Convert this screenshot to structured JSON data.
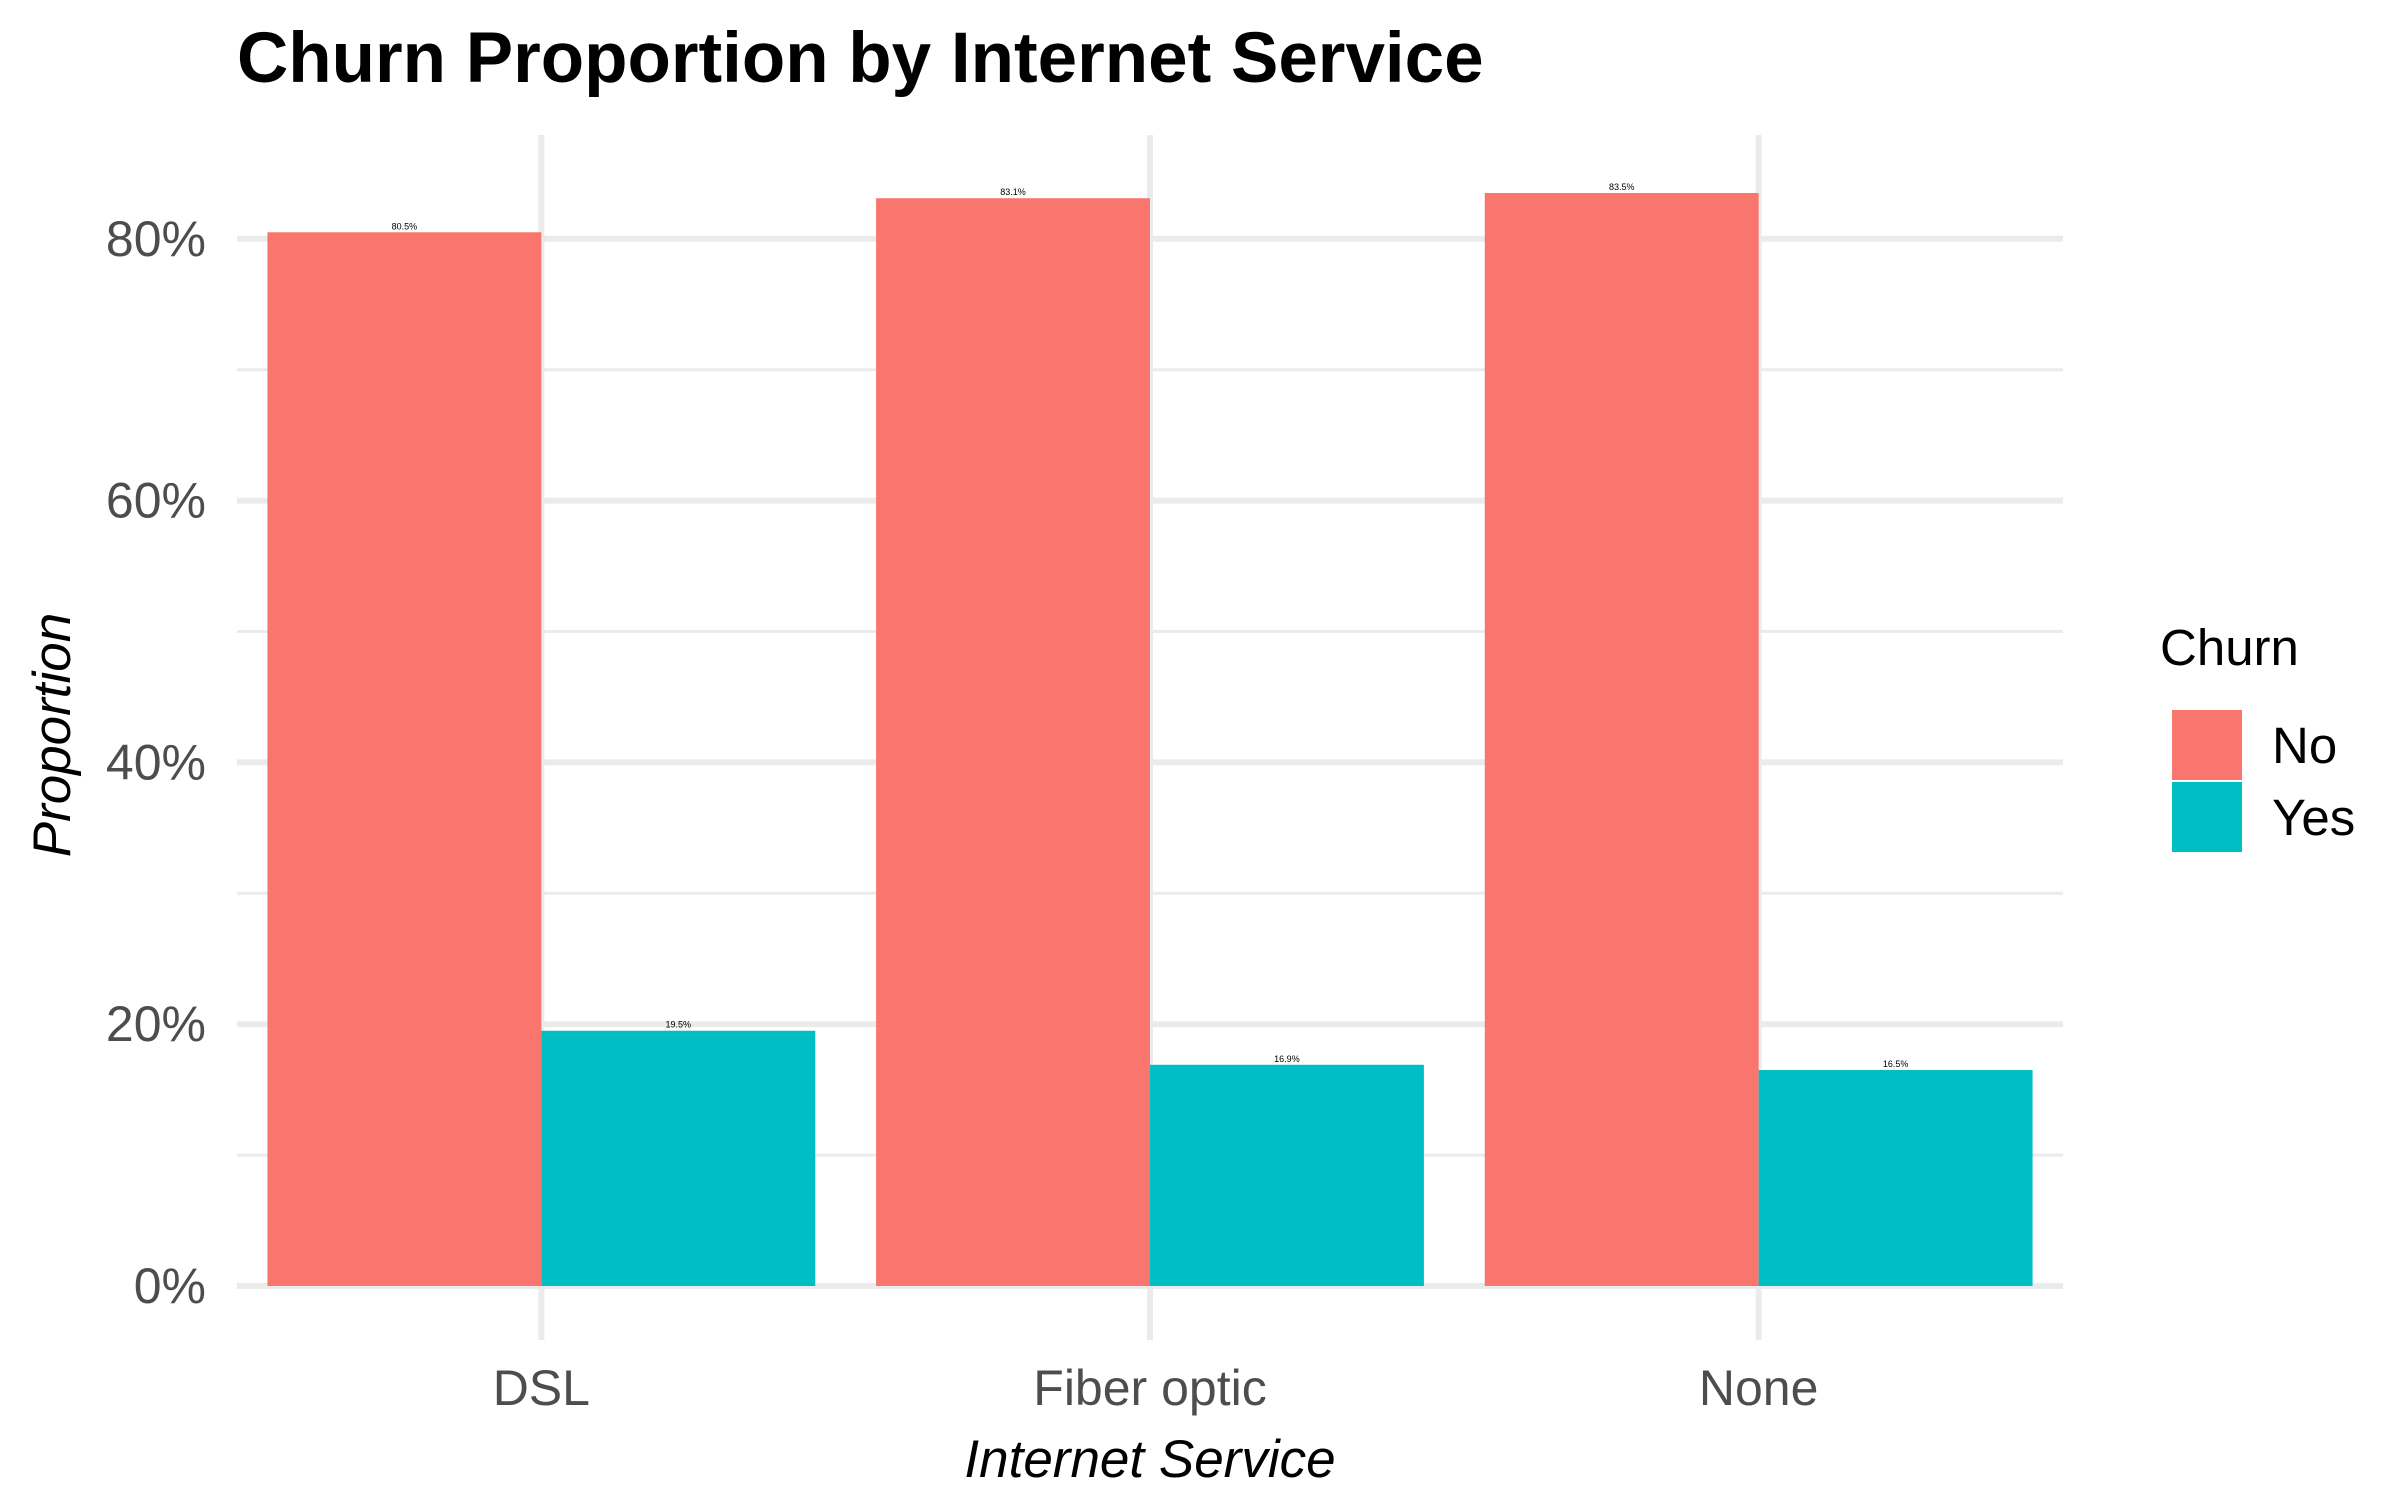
{
  "chart_data": {
    "type": "bar",
    "title": "Churn Proportion by Internet Service",
    "xlabel": "Internet Service",
    "ylabel": "Proportion",
    "categories": [
      "DSL",
      "Fiber optic",
      "None"
    ],
    "series": [
      {
        "name": "No",
        "color": "#F8766D",
        "values": [
          80.5,
          83.1,
          83.5
        ],
        "labels": [
          "80.5%",
          "83.1%",
          "83.5%"
        ]
      },
      {
        "name": "Yes",
        "color": "#00BFC4",
        "values": [
          19.5,
          16.9,
          16.5
        ],
        "labels": [
          "19.5%",
          "16.9%",
          "16.5%"
        ]
      }
    ],
    "ylim": [
      0,
      88
    ],
    "yticks": [
      0,
      20,
      40,
      60,
      80
    ],
    "ytick_labels": [
      "0%",
      "20%",
      "40%",
      "60%",
      "80%"
    ],
    "grid": true,
    "legend": {
      "title": "Churn",
      "position": "right"
    }
  }
}
